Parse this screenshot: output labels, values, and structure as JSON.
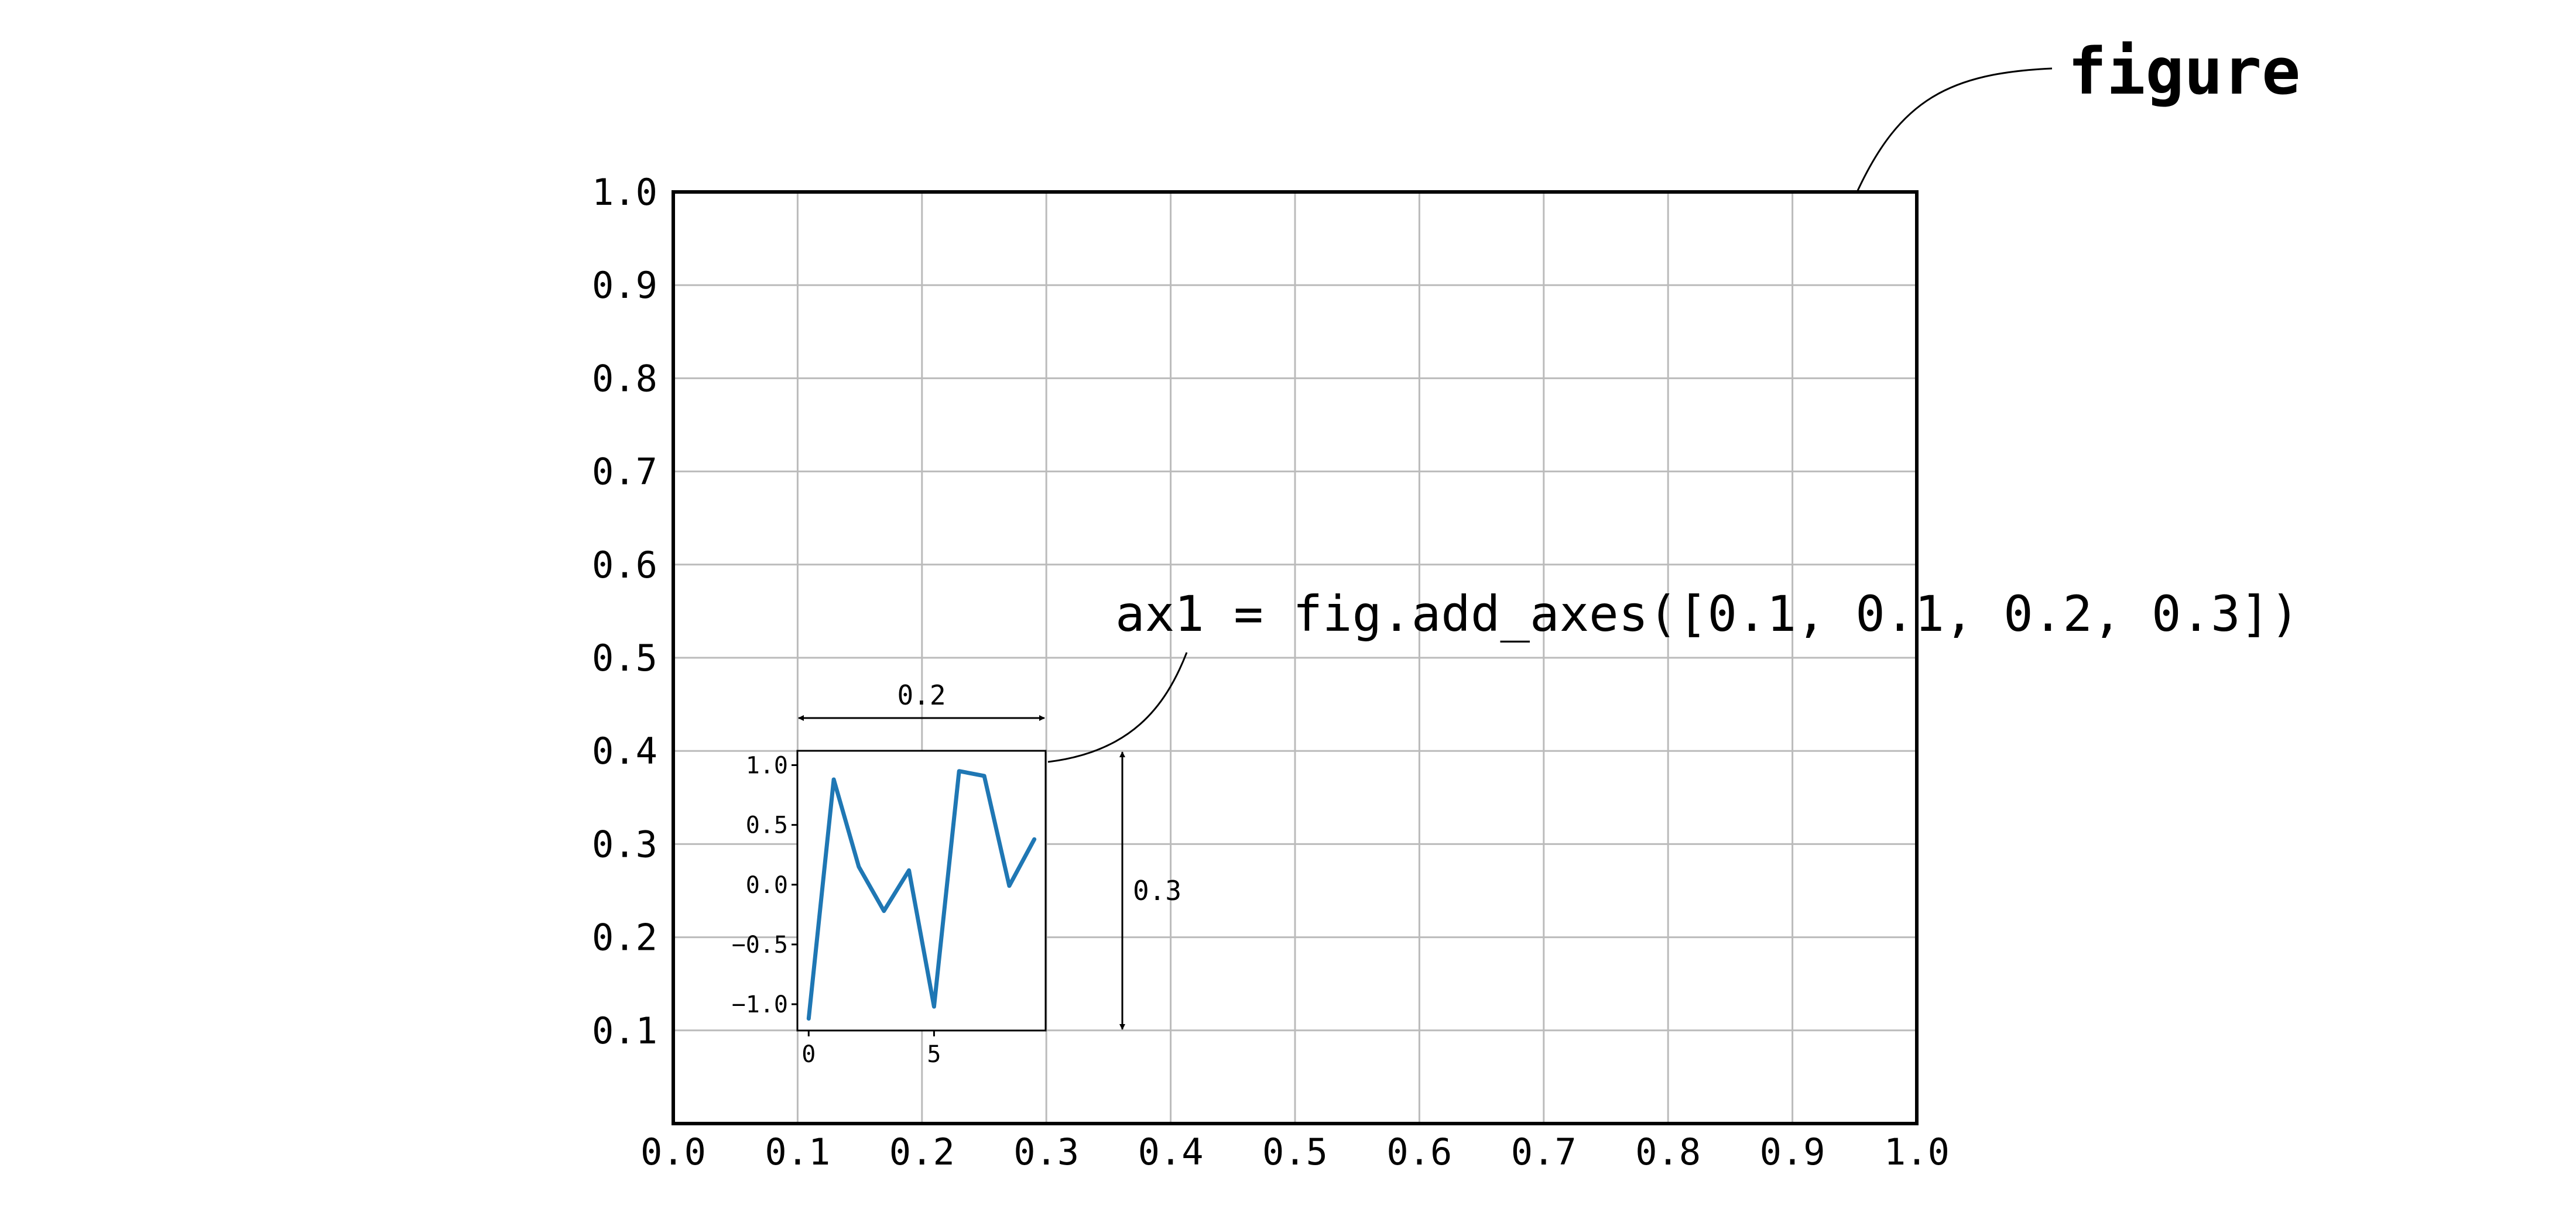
{
  "figure_label": "figure",
  "code_annotation": "ax1 = fig.add_axes([0.1, 0.1, 0.2, 0.3])",
  "width_label": "0.2",
  "height_label": "0.3",
  "chart_data": [
    {
      "type": "line",
      "xlim": [
        0.0,
        1.0
      ],
      "ylim": [
        0.0,
        1.0
      ],
      "grid": true,
      "x_ticks": [
        "0.0",
        "0.1",
        "0.2",
        "0.3",
        "0.4",
        "0.5",
        "0.6",
        "0.7",
        "0.8",
        "0.9",
        "1.0"
      ],
      "y_ticks": [
        "0.1",
        "0.2",
        "0.3",
        "0.4",
        "0.5",
        "0.6",
        "0.7",
        "0.8",
        "0.9",
        "1.0"
      ],
      "x": [],
      "y": []
    },
    {
      "type": "line",
      "x": [
        0,
        1,
        2,
        3,
        4,
        5,
        6,
        7,
        8,
        9
      ],
      "y": [
        -1.12,
        0.88,
        0.15,
        -0.22,
        0.12,
        -1.02,
        0.95,
        0.91,
        -0.01,
        0.38
      ],
      "xlim": [
        -0.45,
        9.45
      ],
      "ylim": [
        -1.22,
        1.12
      ],
      "x_ticks": [
        "0",
        "5"
      ],
      "y_ticks": [
        "1.0",
        "0.5",
        "0.0",
        "−0.5",
        "−1.0"
      ],
      "line_color": "#1f77b4"
    }
  ],
  "colors": {
    "grid": "#bbbbbb",
    "line": "#1f77b4",
    "frame": "#000000"
  }
}
